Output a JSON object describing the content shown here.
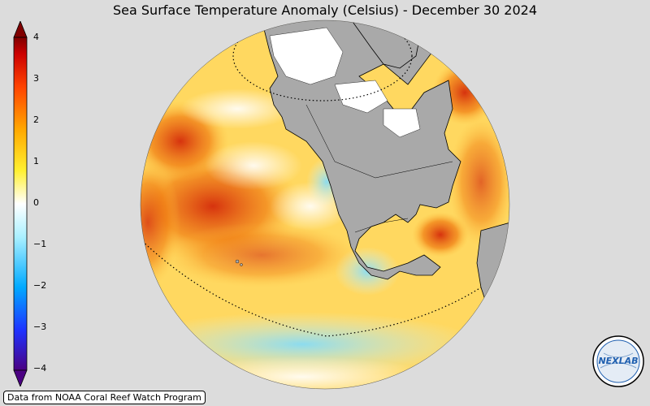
{
  "title": "Sea Surface Temperature Anomaly (Celsius) - December 30 2024",
  "colorbar": {
    "ticks": [
      "4",
      "3",
      "2",
      "1",
      "0",
      "−1",
      "−2",
      "−3",
      "−4"
    ],
    "colors": [
      "#4b0082",
      "#1e32ff",
      "#00aaff",
      "#aaf0ff",
      "#ffffff",
      "#fff030",
      "#ffaa00",
      "#ff4400",
      "#cc0000",
      "#800000"
    ]
  },
  "credit": "Data from NOAA Coral Reef Watch Program",
  "logo": {
    "text": "NEXLAB"
  },
  "map": {
    "land_color": "#a9a9a9",
    "ocean_warm": "#ffd050",
    "ocean_hot": "#e04010",
    "ocean_cool": "#a8ecff"
  }
}
